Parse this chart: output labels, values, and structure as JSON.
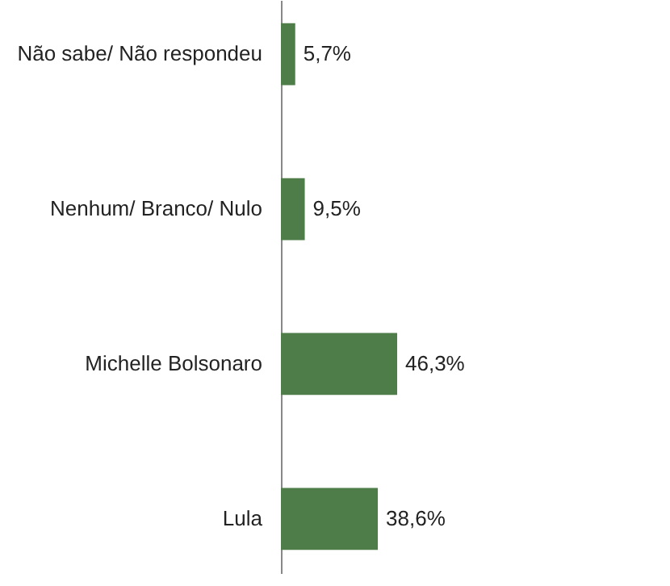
{
  "chart_data": {
    "type": "bar",
    "orientation": "horizontal",
    "categories": [
      "Não sabe/ Não respondeu",
      "Nenhum/ Branco/ Nulo",
      "Michelle Bolsonaro",
      "Lula"
    ],
    "values": [
      5.7,
      9.5,
      46.3,
      38.6
    ],
    "value_labels": [
      "5,7%",
      "9,5%",
      "46,3%",
      "38,6%"
    ],
    "color": "#4f7d4a"
  }
}
